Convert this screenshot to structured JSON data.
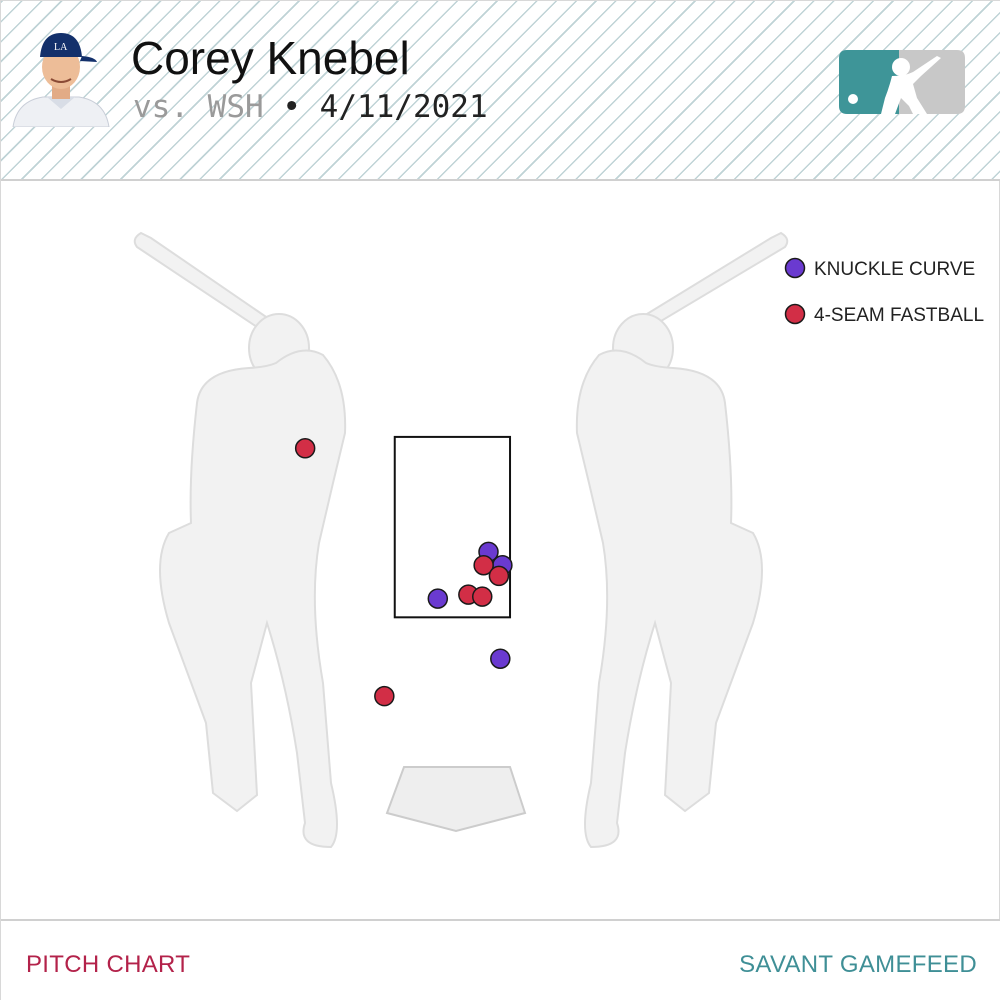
{
  "header": {
    "player_name": "Corey Knebel",
    "opponent": "vs. WSH",
    "separator": " • ",
    "game_date": "4/11/2021"
  },
  "chart_data": {
    "type": "scatter",
    "series": [
      {
        "name": "KNUCKLE CURVE",
        "color": "#6a3ad0",
        "points": [
          {
            "x": 0.52,
            "y": 2.48
          },
          {
            "x": 0.72,
            "y": 2.28
          },
          {
            "x": -0.21,
            "y": 1.78
          },
          {
            "x": 0.69,
            "y": 0.88
          }
        ]
      },
      {
        "name": "4-SEAM FASTBALL",
        "color": "#d22e46",
        "points": [
          {
            "x": -2.12,
            "y": 4.03
          },
          {
            "x": 0.45,
            "y": 2.28
          },
          {
            "x": 0.67,
            "y": 2.12
          },
          {
            "x": 0.23,
            "y": 1.84
          },
          {
            "x": 0.43,
            "y": 1.81
          },
          {
            "x": -0.98,
            "y": 0.32
          }
        ]
      }
    ],
    "strike_zone": {
      "x": [
        -0.83,
        0.83
      ],
      "y": [
        1.5,
        4.2
      ]
    },
    "axes": {
      "x_range": [
        -6.5,
        7.9
      ],
      "y_range": [
        -3.0,
        8.0
      ]
    }
  },
  "footer": {
    "left_label": "PITCH CHART",
    "right_label": "SAVANT GAMEFEED"
  }
}
